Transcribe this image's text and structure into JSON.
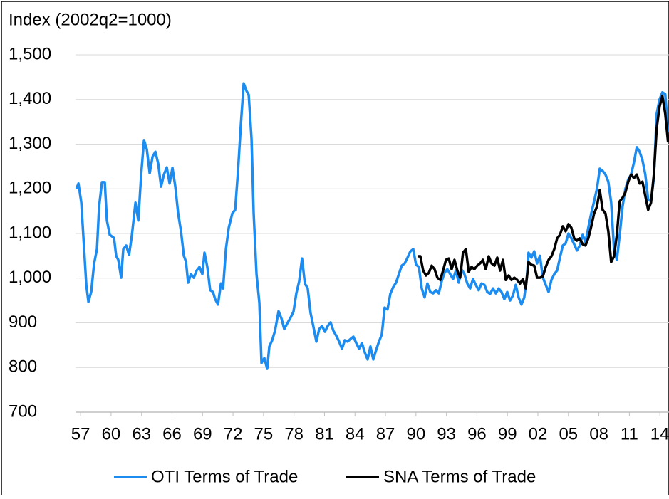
{
  "chart_data": {
    "type": "line",
    "y_label": "Index (2002q2=1000)",
    "xlim": [
      1956.5,
      2014.9
    ],
    "xticks": [
      {
        "value": 1957,
        "label": "57"
      },
      {
        "value": 1960,
        "label": "60"
      },
      {
        "value": 1963,
        "label": "63"
      },
      {
        "value": 1966,
        "label": "66"
      },
      {
        "value": 1969,
        "label": "69"
      },
      {
        "value": 1972,
        "label": "72"
      },
      {
        "value": 1975,
        "label": "75"
      },
      {
        "value": 1978,
        "label": "78"
      },
      {
        "value": 1981,
        "label": "81"
      },
      {
        "value": 1984,
        "label": "84"
      },
      {
        "value": 1987,
        "label": "87"
      },
      {
        "value": 1990,
        "label": "90"
      },
      {
        "value": 1993,
        "label": "93"
      },
      {
        "value": 1996,
        "label": "96"
      },
      {
        "value": 1999,
        "label": "99"
      },
      {
        "value": 2002,
        "label": "02"
      },
      {
        "value": 2005,
        "label": "05"
      },
      {
        "value": 2008,
        "label": "08"
      },
      {
        "value": 2011,
        "label": "11"
      },
      {
        "value": 2014,
        "label": "14"
      }
    ],
    "ylim": [
      700,
      1500
    ],
    "yticks": [
      700,
      800,
      900,
      {
        "value": 1000,
        "label": "1,000"
      },
      {
        "value": 1100,
        "label": "1,100"
      },
      {
        "value": 1200,
        "label": "1,200"
      },
      {
        "value": 1300,
        "label": "1,300"
      },
      {
        "value": 1400,
        "label": "1,400"
      },
      {
        "value": 1500,
        "label": "1,500"
      }
    ],
    "grid": true,
    "legend": "bottom",
    "series": [
      {
        "name": "OTI Terms of Trade",
        "color": "#1c8cf0",
        "x": [
          1956.58,
          1956.79,
          1957.07,
          1957.56,
          1957.77,
          1958.05,
          1958.33,
          1958.61,
          1958.82,
          1959.1,
          1959.38,
          1959.59,
          1959.87,
          1960.29,
          1960.5,
          1960.71,
          1960.99,
          1961.2,
          1961.49,
          1961.77,
          1962.05,
          1962.4,
          1962.68,
          1962.96,
          1963.24,
          1963.52,
          1963.8,
          1964.08,
          1964.36,
          1964.64,
          1964.92,
          1965.2,
          1965.48,
          1965.76,
          1966.04,
          1966.32,
          1966.6,
          1966.88,
          1967.16,
          1967.37,
          1967.58,
          1967.86,
          1968.14,
          1968.42,
          1968.7,
          1968.98,
          1969.19,
          1969.47,
          1969.75,
          1970.03,
          1970.24,
          1970.52,
          1970.81,
          1971.02,
          1971.3,
          1971.58,
          1971.93,
          1972.21,
          1972.49,
          1972.77,
          1973.05,
          1973.33,
          1973.54,
          1973.82,
          1974.03,
          1974.31,
          1974.59,
          1974.8,
          1975.08,
          1975.36,
          1975.57,
          1975.85,
          1976.13,
          1976.48,
          1976.76,
          1977.04,
          1977.32,
          1977.67,
          1977.95,
          1978.23,
          1978.51,
          1978.79,
          1979.07,
          1979.35,
          1979.63,
          1979.92,
          1980.2,
          1980.48,
          1980.76,
          1981.04,
          1981.32,
          1981.6,
          1981.88,
          1982.16,
          1982.44,
          1982.72,
          1983.0,
          1983.28,
          1983.56,
          1983.84,
          1984.12,
          1984.4,
          1984.68,
          1984.96,
          1985.24,
          1985.52,
          1985.8,
          1986.08,
          1986.36,
          1986.64,
          1986.92,
          1987.2,
          1987.48,
          1987.76,
          1988.04,
          1988.32,
          1988.6,
          1988.89,
          1989.17,
          1989.45,
          1989.73,
          1990.01,
          1990.29,
          1990.57,
          1990.85,
          1991.13,
          1991.41,
          1991.69,
          1991.97,
          1992.25,
          1992.53,
          1992.81,
          1993.09,
          1993.37,
          1993.65,
          1993.93,
          1994.21,
          1994.49,
          1994.77,
          1995.05,
          1995.33,
          1995.61,
          1995.89,
          1996.17,
          1996.45,
          1996.74,
          1997.02,
          1997.3,
          1997.58,
          1997.86,
          1998.14,
          1998.42,
          1998.7,
          1998.98,
          1999.26,
          1999.54,
          1999.82,
          2000.1,
          2000.38,
          2000.66,
          2000.94,
          2001.08,
          2001.36,
          2001.64,
          2001.92,
          2002.2,
          2002.49,
          2002.77,
          2003.05,
          2003.33,
          2003.61,
          2003.89,
          2004.17,
          2004.45,
          2004.73,
          2005.01,
          2005.29,
          2005.57,
          2005.84,
          2006.12,
          2006.4,
          2006.68,
          2006.96,
          2007.25,
          2007.53,
          2007.81,
          2008.09,
          2008.37,
          2008.65,
          2008.93,
          2009.21,
          2009.49,
          2009.77,
          2010.05,
          2010.33,
          2010.61,
          2010.89,
          2011.17,
          2011.45,
          2011.73,
          2012.01,
          2012.29,
          2012.57,
          2012.85,
          2013.13,
          2013.41,
          2013.69,
          2013.97,
          2014.25,
          2014.53,
          2014.81
        ],
        "values": [
          1200,
          1212,
          1169,
          985,
          947,
          970,
          1033,
          1065,
          1160,
          1215,
          1215,
          1129,
          1097,
          1090,
          1050,
          1041,
          1001,
          1065,
          1073,
          1052,
          1097,
          1169,
          1129,
          1232,
          1309,
          1288,
          1235,
          1272,
          1283,
          1256,
          1205,
          1232,
          1248,
          1212,
          1247,
          1205,
          1145,
          1105,
          1050,
          1037,
          990,
          1009,
          1001,
          1017,
          1025,
          1009,
          1057,
          1025,
          973,
          969,
          953,
          941,
          988,
          977,
          1065,
          1113,
          1145,
          1153,
          1240,
          1344,
          1436,
          1419,
          1411,
          1312,
          1145,
          1009,
          945,
          810,
          821,
          797,
          847,
          861,
          882,
          926,
          910,
          886,
          898,
          912,
          925,
          966,
          993,
          1044,
          988,
          977,
          922,
          890,
          858,
          886,
          893,
          880,
          893,
          901,
          882,
          871,
          858,
          842,
          861,
          858,
          864,
          869,
          855,
          842,
          855,
          834,
          818,
          847,
          818,
          839,
          858,
          874,
          934,
          930,
          965,
          980,
          990,
          1009,
          1028,
          1033,
          1046,
          1060,
          1065,
          1030,
          1025,
          977,
          957,
          988,
          969,
          966,
          973,
          966,
          993,
          1012,
          1020,
          1009,
          998,
          1017,
          990,
          1020,
          1009,
          988,
          977,
          998,
          985,
          973,
          988,
          985,
          969,
          965,
          977,
          966,
          977,
          969,
          953,
          969,
          950,
          961,
          985,
          957,
          941,
          957,
          1009,
          1057,
          1046,
          1060,
          1033,
          1050,
          1001,
          985,
          969,
          996,
          1009,
          1017,
          1046,
          1073,
          1078,
          1100,
          1089,
          1076,
          1062,
          1073,
          1097,
          1081,
          1113,
          1145,
          1172,
          1200,
          1245,
          1240,
          1232,
          1216,
          1169,
          1065,
          1041,
          1097,
          1160,
          1200,
          1221,
          1232,
          1259,
          1293,
          1283,
          1264,
          1232,
          1176,
          1172,
          1224,
          1368,
          1400,
          1416,
          1412,
          1328
        ]
      },
      {
        "name": "SNA Terms of Trade",
        "color": "#000000",
        "x": [
          1990.15,
          1990.43,
          1990.71,
          1990.99,
          1991.27,
          1991.55,
          1991.83,
          1992.11,
          1992.39,
          1992.67,
          1992.95,
          1993.23,
          1993.51,
          1993.79,
          1994.07,
          1994.35,
          1994.63,
          1994.91,
          1995.19,
          1995.47,
          1995.75,
          1996.03,
          1996.31,
          1996.59,
          1996.87,
          1997.16,
          1997.44,
          1997.72,
          1998.0,
          1998.28,
          1998.56,
          1998.84,
          1999.12,
          1999.4,
          1999.68,
          1999.96,
          2000.24,
          2000.52,
          2000.8,
          2001.08,
          2001.36,
          2001.64,
          2001.92,
          2002.2,
          2002.49,
          2002.77,
          2003.05,
          2003.33,
          2003.61,
          2003.89,
          2004.17,
          2004.45,
          2004.73,
          2005.01,
          2005.29,
          2005.57,
          2005.84,
          2006.12,
          2006.4,
          2006.68,
          2006.96,
          2007.25,
          2007.53,
          2007.81,
          2008.09,
          2008.37,
          2008.65,
          2008.93,
          2009.21,
          2009.49,
          2009.77,
          2010.05,
          2010.33,
          2010.61,
          2010.89,
          2011.17,
          2011.45,
          2011.73,
          2012.01,
          2012.29,
          2012.57,
          2012.85,
          2013.13,
          2013.41,
          2013.69,
          2013.97,
          2014.25,
          2014.53,
          2014.81
        ],
        "values": [
          1049,
          1049,
          1017,
          1006,
          1012,
          1028,
          1020,
          1001,
          996,
          1017,
          1041,
          1044,
          1020,
          1041,
          1017,
          1001,
          1057,
          1065,
          1014,
          1025,
          1020,
          1028,
          1033,
          1041,
          1020,
          1049,
          1033,
          1028,
          1046,
          1017,
          1041,
          996,
          1006,
          996,
          1001,
          996,
          988,
          998,
          977,
          1036,
          1030,
          1028,
          1001,
          1001,
          1004,
          1025,
          1041,
          1049,
          1065,
          1089,
          1097,
          1116,
          1105,
          1121,
          1113,
          1089,
          1084,
          1089,
          1076,
          1073,
          1089,
          1116,
          1145,
          1160,
          1197,
          1153,
          1145,
          1105,
          1036,
          1049,
          1097,
          1172,
          1180,
          1192,
          1216,
          1232,
          1224,
          1232,
          1212,
          1216,
          1184,
          1153,
          1169,
          1232,
          1336,
          1384,
          1408,
          1368,
          1304
        ]
      }
    ]
  }
}
